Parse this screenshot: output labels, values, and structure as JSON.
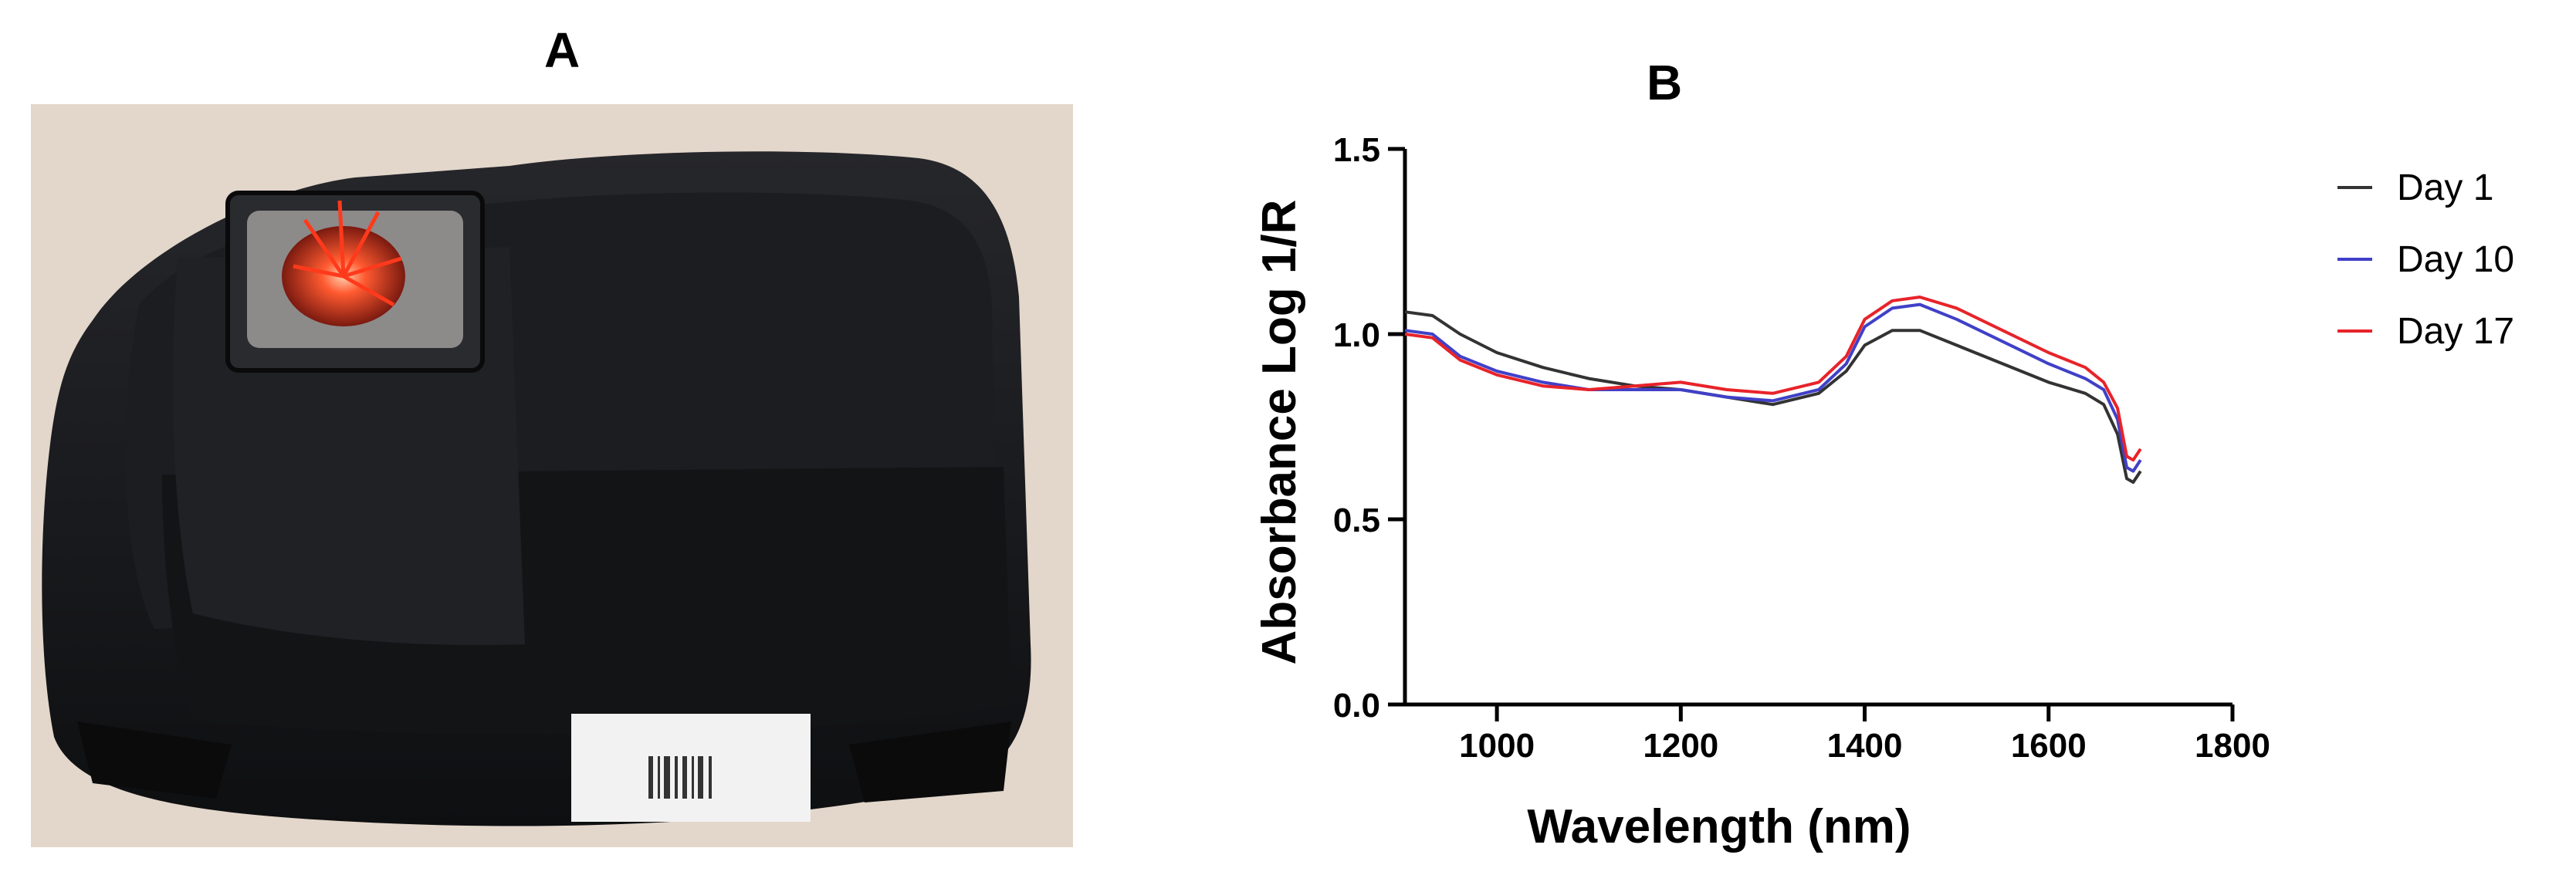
{
  "panels": {
    "a_label": "A",
    "b_label": "B"
  },
  "photo": {
    "subject": "handheld NIR spectrometer device, scanning window with red light",
    "colors": {
      "background": "#e3d6cb",
      "device": "#17181b",
      "light": "#ff3a1c"
    }
  },
  "chart_data": {
    "type": "line",
    "title": "",
    "xlabel": "Wavelength (nm)",
    "ylabel": "Absorbance Log 1/R",
    "xlim": [
      900,
      1800
    ],
    "ylim": [
      0.0,
      1.5
    ],
    "xticks": [
      1000,
      1200,
      1400,
      1600,
      1800
    ],
    "yticks": [
      0.0,
      0.5,
      1.0,
      1.5
    ],
    "xtick_labels": [
      "1000",
      "1200",
      "1400",
      "1600",
      "1800"
    ],
    "ytick_labels": [
      "0.0",
      "0.5",
      "1.0",
      "1.5"
    ],
    "legend_position": "right",
    "grid": false,
    "series": [
      {
        "name": "Day 1",
        "color": "#333333",
        "points": [
          [
            900,
            1.06
          ],
          [
            930,
            1.05
          ],
          [
            960,
            1.0
          ],
          [
            1000,
            0.95
          ],
          [
            1050,
            0.91
          ],
          [
            1100,
            0.88
          ],
          [
            1150,
            0.86
          ],
          [
            1200,
            0.85
          ],
          [
            1250,
            0.83
          ],
          [
            1300,
            0.81
          ],
          [
            1350,
            0.84
          ],
          [
            1380,
            0.9
          ],
          [
            1400,
            0.97
          ],
          [
            1430,
            1.01
          ],
          [
            1460,
            1.01
          ],
          [
            1500,
            0.97
          ],
          [
            1550,
            0.92
          ],
          [
            1600,
            0.87
          ],
          [
            1640,
            0.84
          ],
          [
            1660,
            0.81
          ],
          [
            1675,
            0.73
          ],
          [
            1685,
            0.61
          ],
          [
            1692,
            0.6
          ],
          [
            1700,
            0.63
          ]
        ]
      },
      {
        "name": "Day 10",
        "color": "#4040c8",
        "points": [
          [
            900,
            1.01
          ],
          [
            930,
            1.0
          ],
          [
            960,
            0.94
          ],
          [
            1000,
            0.9
          ],
          [
            1050,
            0.87
          ],
          [
            1100,
            0.85
          ],
          [
            1150,
            0.85
          ],
          [
            1200,
            0.85
          ],
          [
            1250,
            0.83
          ],
          [
            1300,
            0.82
          ],
          [
            1350,
            0.85
          ],
          [
            1380,
            0.92
          ],
          [
            1400,
            1.02
          ],
          [
            1430,
            1.07
          ],
          [
            1460,
            1.08
          ],
          [
            1500,
            1.04
          ],
          [
            1550,
            0.98
          ],
          [
            1600,
            0.92
          ],
          [
            1640,
            0.88
          ],
          [
            1660,
            0.85
          ],
          [
            1675,
            0.77
          ],
          [
            1685,
            0.64
          ],
          [
            1692,
            0.63
          ],
          [
            1700,
            0.66
          ]
        ]
      },
      {
        "name": "Day 17",
        "color": "#e8232a",
        "points": [
          [
            900,
            1.0
          ],
          [
            930,
            0.99
          ],
          [
            960,
            0.93
          ],
          [
            1000,
            0.89
          ],
          [
            1050,
            0.86
          ],
          [
            1100,
            0.85
          ],
          [
            1150,
            0.86
          ],
          [
            1200,
            0.87
          ],
          [
            1250,
            0.85
          ],
          [
            1300,
            0.84
          ],
          [
            1350,
            0.87
          ],
          [
            1380,
            0.94
          ],
          [
            1400,
            1.04
          ],
          [
            1430,
            1.09
          ],
          [
            1460,
            1.1
          ],
          [
            1500,
            1.07
          ],
          [
            1550,
            1.01
          ],
          [
            1600,
            0.95
          ],
          [
            1640,
            0.91
          ],
          [
            1660,
            0.87
          ],
          [
            1675,
            0.8
          ],
          [
            1685,
            0.67
          ],
          [
            1692,
            0.66
          ],
          [
            1700,
            0.69
          ]
        ]
      }
    ]
  }
}
